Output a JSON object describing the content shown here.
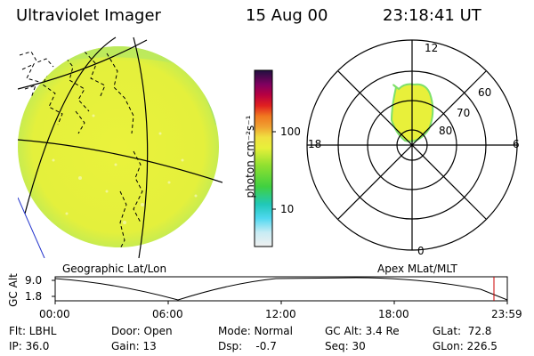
{
  "header": {
    "instrument": "Ultraviolet Imager",
    "date": "15 Aug 00",
    "time": "23:18:41 UT"
  },
  "colorbar": {
    "unit_label": "photon cm⁻²s⁻¹",
    "tick_100": "100",
    "tick_10": "10"
  },
  "polar": {
    "label_top": "12",
    "label_bottom": "0",
    "label_left": "18",
    "label_right": "6",
    "ring_60": "60",
    "ring_70": "70",
    "ring_80": "80"
  },
  "projection_labels": {
    "left": "Geographic Lat/Lon",
    "right": "Apex MLat/MLT"
  },
  "timeline": {
    "ylabel": "GC Alt",
    "y_top": "9.0",
    "y_bottom": "1.8",
    "ticks": [
      "00:00",
      "06:00",
      "12:00",
      "18:00",
      "23:59"
    ]
  },
  "status": {
    "flt": "Flt: LBHL",
    "ip": "IP: 36.0",
    "door": "Door: Open",
    "gain": "Gain: 13",
    "mode": "Mode: Normal",
    "dsp": "Dsp:    -0.7",
    "gcalt": "GC Alt: 3.4 Re",
    "seq": "Seq: 30",
    "glat": "GLat:  72.8",
    "glon": "GLon: 226.5"
  },
  "colors": {
    "aurora": "#e8f03a",
    "aurora_edge": "#7ee06a",
    "frame": "#000000",
    "marker": "#cc0000"
  }
}
